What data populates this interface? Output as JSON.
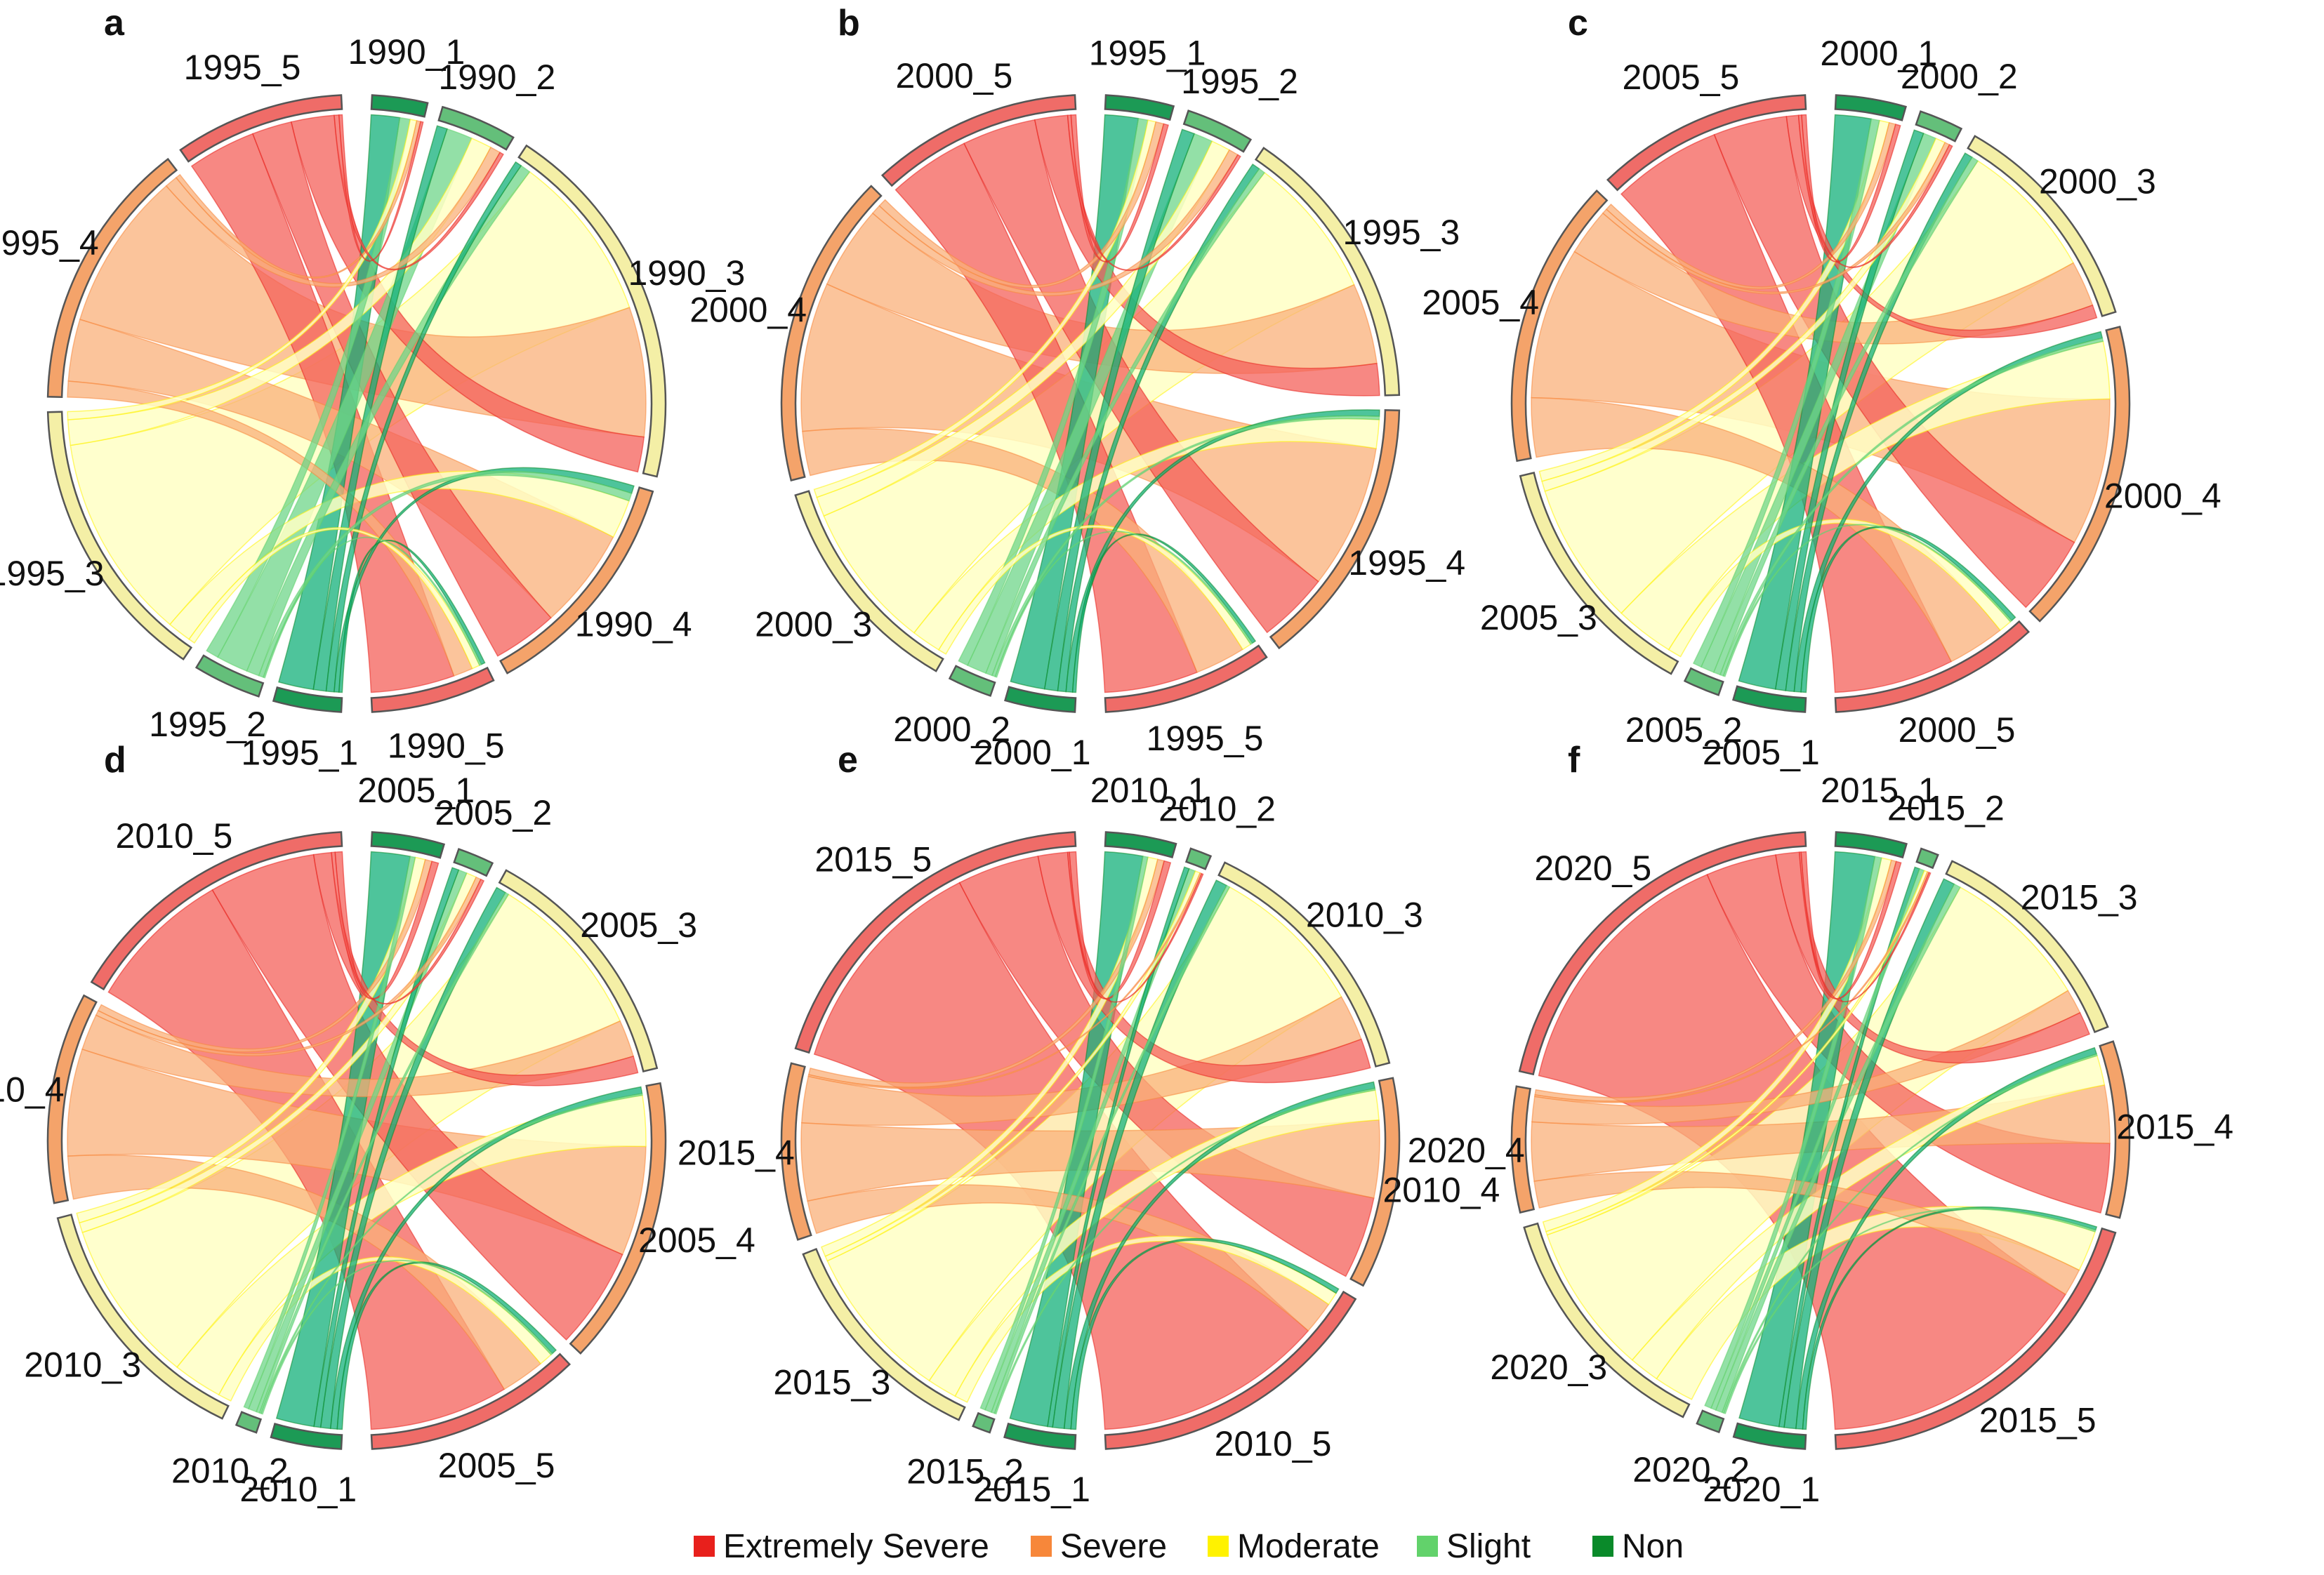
{
  "legend": {
    "items": [
      {
        "label": "Extremely Severe",
        "color": "#e8201c"
      },
      {
        "label": "Severe",
        "color": "#f7873a"
      },
      {
        "label": "Moderate",
        "color": "#fff200"
      },
      {
        "label": "Slight",
        "color": "#62d26b"
      },
      {
        "label": "Non",
        "color": "#0a8a2a"
      }
    ]
  },
  "chart_data": [
    {
      "type": "chord",
      "panel": "a",
      "from_year": "1990",
      "to_year": "1995",
      "from_totals": {
        "1": 4,
        "2": 5.5,
        "3": 27,
        "4": 17,
        "5": 9
      },
      "to_totals": {
        "1": 4,
        "2": 4,
        "3": 17,
        "4": 16,
        "5": 10
      },
      "flows": {
        "1": {
          "1": 2.2,
          "2": 0.8,
          "3": 0.5,
          "4": 0.3,
          "5": 0.2
        },
        "2": {
          "1": 0.8,
          "2": 2.0,
          "3": 1.6,
          "4": 0.8,
          "5": 0.3
        },
        "3": {
          "1": 0.5,
          "2": 0.8,
          "3": 13.0,
          "4": 10.0,
          "5": 2.7
        },
        "4": {
          "1": 0.3,
          "2": 0.3,
          "3": 1.5,
          "4": 3.9,
          "5": 2.5
        },
        "5": {
          "1": 0.2,
          "2": 0.1,
          "3": 0.4,
          "4": 1.0,
          "5": 4.3
        }
      }
    },
    {
      "type": "chord",
      "panel": "b",
      "from_year": "1995",
      "to_year": "2000",
      "from_totals": {
        "1": 4,
        "2": 4,
        "3": 17,
        "4": 16,
        "5": 10
      },
      "to_totals": {
        "1": 4,
        "2": 2.5,
        "3": 13,
        "4": 18,
        "5": 12
      },
      "flows": {
        "1": {
          "1": 2.1,
          "2": 0.6,
          "3": 0.5,
          "4": 0.5,
          "5": 0.3
        },
        "2": {
          "1": 0.8,
          "2": 1.2,
          "3": 1.2,
          "4": 0.6,
          "5": 0.2
        },
        "3": {
          "1": 0.5,
          "2": 0.4,
          "3": 9.0,
          "4": 5.1,
          "5": 2.0
        },
        "4": {
          "1": 0.4,
          "2": 0.2,
          "3": 1.8,
          "4": 9.1,
          "5": 4.5
        },
        "5": {
          "1": 0.2,
          "2": 0.1,
          "3": 0.5,
          "4": 2.7,
          "5": 5.0
        }
      }
    },
    {
      "type": "chord",
      "panel": "c",
      "from_year": "2000",
      "to_year": "2005",
      "from_totals": {
        "1": 4,
        "2": 2.5,
        "3": 13,
        "4": 18,
        "5": 12
      },
      "to_totals": {
        "1": 4,
        "2": 2,
        "3": 14,
        "4": 16,
        "5": 12
      },
      "flows": {
        "1": {
          "1": 2.2,
          "2": 0.5,
          "3": 0.6,
          "4": 0.4,
          "5": 0.3
        },
        "2": {
          "1": 0.6,
          "2": 0.8,
          "3": 0.6,
          "4": 0.3,
          "5": 0.2
        },
        "3": {
          "1": 0.5,
          "2": 0.4,
          "3": 8.5,
          "4": 2.8,
          "5": 0.8
        },
        "4": {
          "1": 0.4,
          "2": 0.2,
          "3": 3.5,
          "4": 9.0,
          "5": 4.9
        },
        "5": {
          "1": 0.3,
          "2": 0.1,
          "3": 0.8,
          "4": 3.5,
          "5": 7.3
        }
      }
    },
    {
      "type": "chord",
      "panel": "d",
      "from_year": "2005",
      "to_year": "2010",
      "from_totals": {
        "1": 4,
        "2": 2,
        "3": 14,
        "4": 16,
        "5": 12
      },
      "to_totals": {
        "1": 4,
        "2": 1.2,
        "3": 15,
        "4": 12,
        "5": 17
      },
      "flows": {
        "1": {
          "1": 2.3,
          "2": 0.3,
          "3": 0.6,
          "4": 0.4,
          "5": 0.4
        },
        "2": {
          "1": 0.4,
          "2": 0.5,
          "3": 0.6,
          "4": 0.3,
          "5": 0.2
        },
        "3": {
          "1": 0.6,
          "2": 0.2,
          "3": 10.0,
          "4": 2.2,
          "5": 1.0
        },
        "4": {
          "1": 0.4,
          "2": 0.1,
          "3": 3.0,
          "4": 6.5,
          "5": 6.0
        },
        "5": {
          "1": 0.3,
          "2": 0.1,
          "3": 0.8,
          "4": 2.6,
          "5": 8.2
        }
      }
    },
    {
      "type": "chord",
      "panel": "e",
      "from_year": "2010",
      "to_year": "2015",
      "from_totals": {
        "1": 4,
        "2": 1.2,
        "3": 15,
        "4": 12,
        "5": 17
      },
      "to_totals": {
        "1": 4,
        "2": 1,
        "3": 13,
        "4": 10,
        "5": 21
      },
      "flows": {
        "1": {
          "1": 2.3,
          "2": 0.3,
          "3": 0.6,
          "4": 0.4,
          "5": 0.4
        },
        "2": {
          "1": 0.3,
          "2": 0.4,
          "3": 0.3,
          "4": 0.1,
          "5": 0.1
        },
        "3": {
          "1": 0.7,
          "2": 0.2,
          "3": 9.5,
          "4": 2.8,
          "5": 1.8
        },
        "4": {
          "1": 0.4,
          "2": 0.1,
          "3": 1.8,
          "4": 4.7,
          "5": 5.0
        },
        "5": {
          "1": 0.3,
          "2": 0.0,
          "3": 0.8,
          "4": 2.0,
          "5": 13.9
        }
      }
    },
    {
      "type": "chord",
      "panel": "f",
      "from_year": "2015",
      "to_year": "2020",
      "from_totals": {
        "1": 4,
        "2": 1,
        "3": 13,
        "4": 10,
        "5": 21
      },
      "to_totals": {
        "1": 4,
        "2": 1.3,
        "3": 14,
        "4": 7,
        "5": 22
      },
      "flows": {
        "1": {
          "1": 2.4,
          "2": 0.4,
          "3": 0.6,
          "4": 0.3,
          "5": 0.3
        },
        "2": {
          "1": 0.3,
          "2": 0.3,
          "3": 0.2,
          "4": 0.1,
          "5": 0.1
        },
        "3": {
          "1": 0.7,
          "2": 0.4,
          "3": 9.0,
          "4": 1.5,
          "5": 1.4
        },
        "4": {
          "1": 0.4,
          "2": 0.1,
          "3": 1.8,
          "4": 3.5,
          "5": 4.2
        },
        "5": {
          "1": 0.2,
          "2": 0.1,
          "3": 2.4,
          "4": 1.6,
          "5": 16.0
        }
      }
    }
  ]
}
